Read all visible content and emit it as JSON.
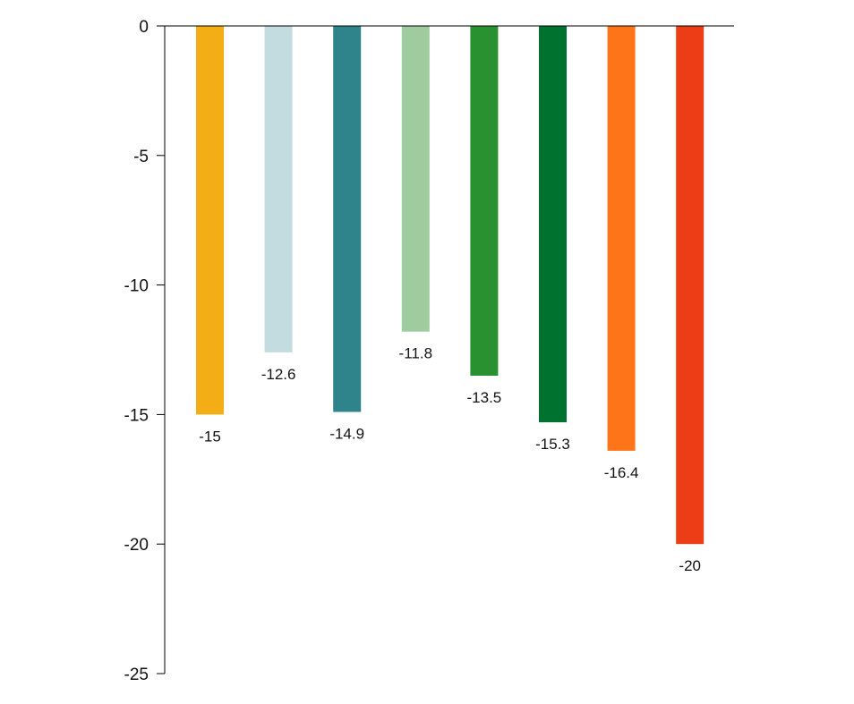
{
  "chart_data": {
    "type": "bar",
    "title": "",
    "xlabel": "",
    "ylabel": "",
    "ylim": [
      -25,
      0
    ],
    "y_ticks": [
      0,
      -5,
      -10,
      -15,
      -20,
      -25
    ],
    "y_tick_labels": [
      "0",
      "-5",
      "-10",
      "-15",
      "-20",
      "-25"
    ],
    "grid": false,
    "legend": "none",
    "values": [
      -15,
      -12.6,
      -14.9,
      -11.8,
      -13.5,
      -15.3,
      -16.4,
      -20
    ],
    "value_labels": [
      "-15",
      "-12.6",
      "-14.9",
      "-11.8",
      "-13.5",
      "-15.3",
      "-16.4",
      "-20"
    ],
    "colors": [
      "#F2AE14",
      "#C2DCDF",
      "#2F838A",
      "#9ECC9F",
      "#2A9131",
      "#007230",
      "#FD7419",
      "#EC3D16"
    ]
  }
}
